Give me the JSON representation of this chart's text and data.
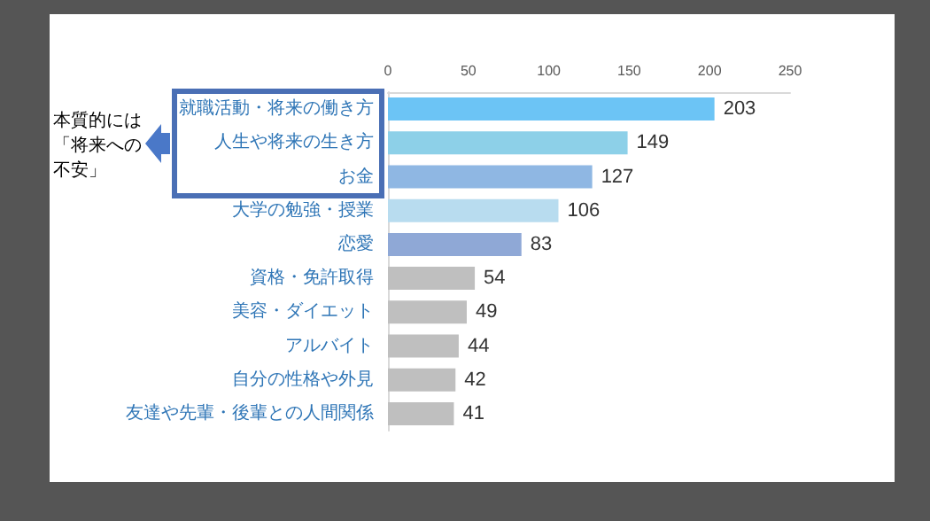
{
  "chart_data": {
    "type": "bar",
    "orientation": "horizontal",
    "categories": [
      "就職活動・将来の働き方",
      "人生や将来の生き方",
      "お金",
      "大学の勉強・授業",
      "恋愛",
      "資格・免許取得",
      "美容・ダイエット",
      "アルバイト",
      "自分の性格や外見",
      "友達や先輩・後輩との人間関係"
    ],
    "values": [
      203,
      149,
      127,
      106,
      83,
      54,
      49,
      44,
      42,
      41
    ],
    "colors": [
      "#6cc4f5",
      "#8dd0e8",
      "#8fb7e3",
      "#b8dcef",
      "#8fa8d6",
      "#bfbfbf",
      "#bfbfbf",
      "#bfbfbf",
      "#bfbfbf",
      "#bfbfbf"
    ],
    "xlim": [
      0,
      250
    ],
    "xticks": [
      0,
      50,
      100,
      150,
      200,
      250
    ],
    "data_labels": true,
    "grid": false,
    "annotations": [
      "本質的には「将来への不安」"
    ]
  }
}
